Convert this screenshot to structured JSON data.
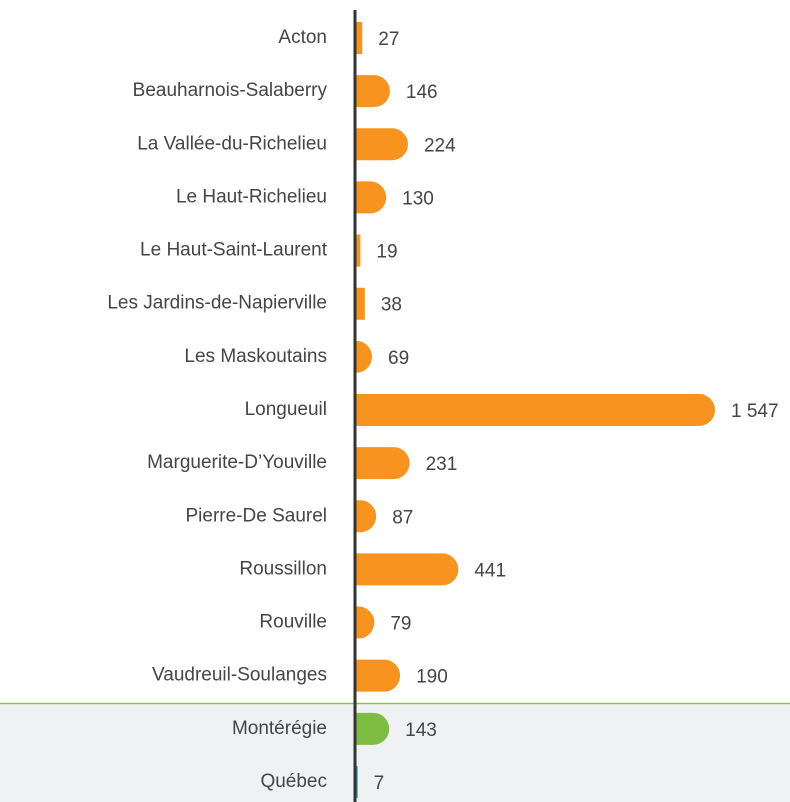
{
  "chart_data": {
    "type": "bar",
    "orientation": "horizontal",
    "categories": [
      "Acton",
      "Beauharnois-Salaberry",
      "La Vallée-du-Richelieu",
      "Le Haut-Richelieu",
      "Le Haut-Saint-Laurent",
      "Les Jardins-de-Napierville",
      "Les Maskoutains",
      "Longueuil",
      "Marguerite-D’Youville",
      "Pierre-De Saurel",
      "Roussillon",
      "Rouville",
      "Vaudreuil-Soulanges",
      "Montérégie",
      "Québec"
    ],
    "values": [
      27,
      146,
      224,
      130,
      19,
      38,
      69,
      1547,
      231,
      87,
      441,
      79,
      190,
      143,
      7
    ],
    "value_labels": [
      "27",
      "146",
      "224",
      "130",
      "19",
      "38",
      "69",
      "1 547",
      "231",
      "87",
      "441",
      "79",
      "190",
      "143",
      "7"
    ],
    "colors": [
      "#f7931e",
      "#f7931e",
      "#f7931e",
      "#f7931e",
      "#f7931e",
      "#f7931e",
      "#f7931e",
      "#f7931e",
      "#f7931e",
      "#f7931e",
      "#f7931e",
      "#f7931e",
      "#f7931e",
      "#7dbb42",
      "#1a9ba1"
    ]
  }
}
